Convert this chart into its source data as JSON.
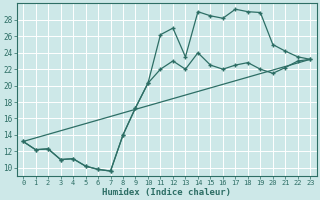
{
  "xlabel": "Humidex (Indice chaleur)",
  "xlim": [
    -0.5,
    23.5
  ],
  "ylim": [
    9,
    30
  ],
  "yticks": [
    10,
    12,
    14,
    16,
    18,
    20,
    22,
    24,
    26,
    28
  ],
  "xticks": [
    0,
    1,
    2,
    3,
    4,
    5,
    6,
    7,
    8,
    9,
    10,
    11,
    12,
    13,
    14,
    15,
    16,
    17,
    18,
    19,
    20,
    21,
    22,
    23
  ],
  "bg_color": "#cde8e8",
  "grid_color": "#b8d8d8",
  "line_color": "#2d6e65",
  "line1_x": [
    0,
    1,
    2,
    3,
    4,
    5,
    6,
    7,
    8,
    9,
    10,
    11,
    12,
    13,
    14,
    15,
    16,
    17,
    18,
    19,
    20,
    21,
    22,
    23
  ],
  "line1_y": [
    13.2,
    12.2,
    12.3,
    11.0,
    11.1,
    10.2,
    9.8,
    9.6,
    14.0,
    17.3,
    20.3,
    26.2,
    27.0,
    23.5,
    29.0,
    28.5,
    28.2,
    29.3,
    29.0,
    28.9,
    25.0,
    24.2,
    23.5,
    23.2
  ],
  "line2_x": [
    0,
    1,
    2,
    3,
    4,
    5,
    6,
    7,
    8,
    9,
    10,
    11,
    12,
    13,
    14,
    15,
    16,
    17,
    18,
    19,
    20,
    21,
    22,
    23
  ],
  "line2_y": [
    13.2,
    12.2,
    12.3,
    11.0,
    11.1,
    10.2,
    9.8,
    9.6,
    14.0,
    17.3,
    20.3,
    22.0,
    23.0,
    22.0,
    24.0,
    22.5,
    22.0,
    22.5,
    22.8,
    22.0,
    21.5,
    22.2,
    23.0,
    23.2
  ],
  "line3_x": [
    0,
    23
  ],
  "line3_y": [
    13.2,
    23.2
  ]
}
